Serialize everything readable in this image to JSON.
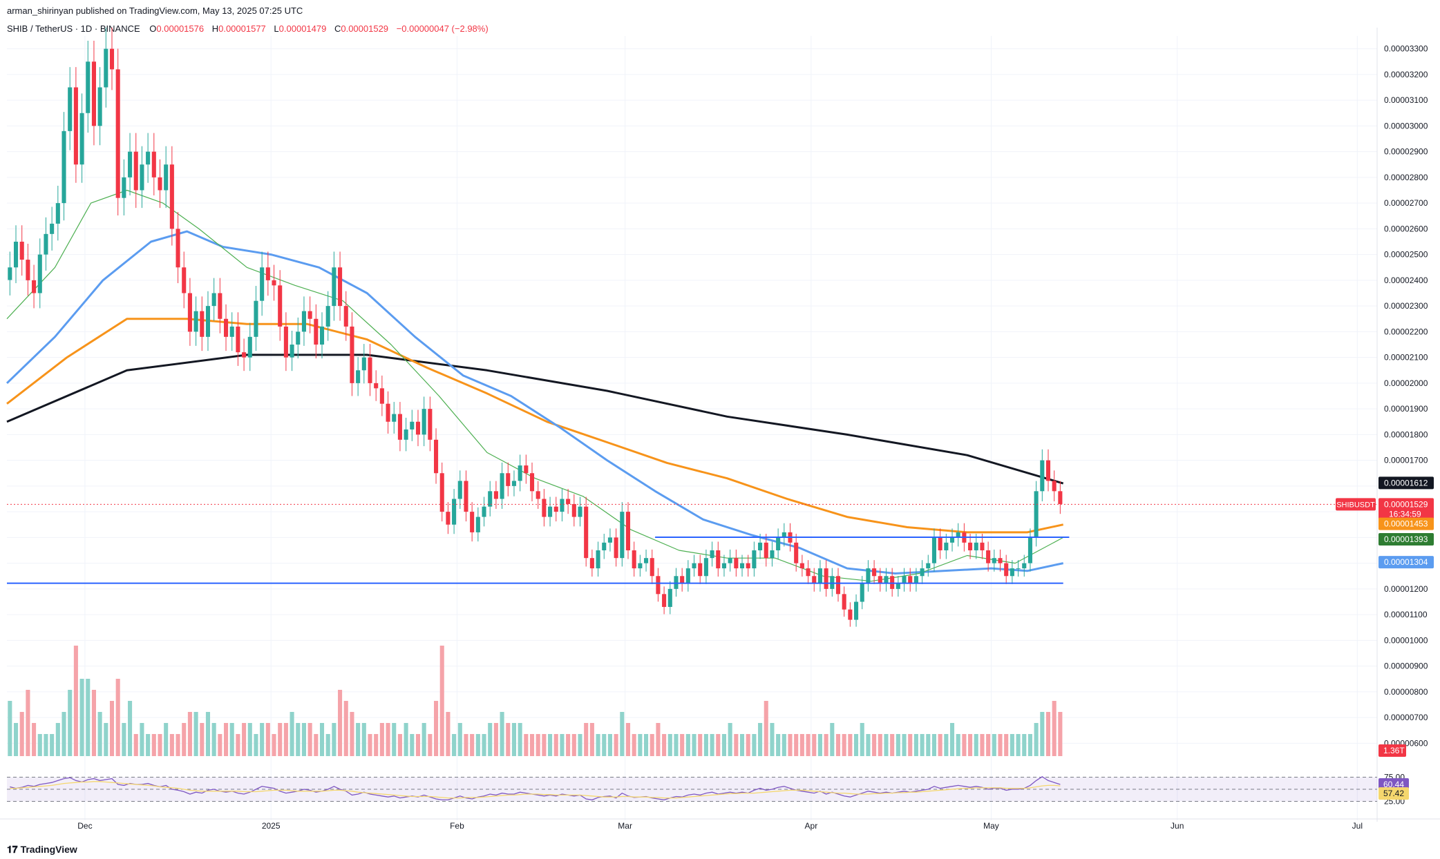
{
  "header": {
    "publisher": "arman_shirinyan published on TradingView.com, May 13, 2025 07:25 UTC",
    "symbol": "SHIB / TetherUS · 1D · BINANCE",
    "o_label": "O",
    "o_value": "0.00001576",
    "h_label": "H",
    "h_value": "0.00001577",
    "l_label": "L",
    "l_value": "0.00001479",
    "c_label": "C",
    "c_value": "0.00001529",
    "change": "−0.00000047 (−2.98%)"
  },
  "footer": {
    "logo_text": "TradingView"
  },
  "colors": {
    "up": "#26a69a",
    "down": "#f23645",
    "up_vol": "#8fd3cb",
    "down_vol": "#f5a3a9",
    "ma_black": "#131722",
    "ma_orange": "#f7931a",
    "ma_blue": "#5b9cf0",
    "ma_green": "#4caf50",
    "hline": "#2962ff",
    "rsi": "#7e57c2",
    "rsi_ma": "#f5d76e"
  },
  "chart_data": {
    "type": "candlestick",
    "symbol": "SHIBUSDT",
    "price_axis": {
      "min": 5.5e-06,
      "max": 3.35e-05,
      "ticks": [
        "0.00003300",
        "0.00003200",
        "0.00003100",
        "0.00003000",
        "0.00002900",
        "0.00002800",
        "0.00002700",
        "0.00002600",
        "0.00002500",
        "0.00002400",
        "0.00002300",
        "0.00002200",
        "0.00002100",
        "0.00002000",
        "0.00001900",
        "0.00001800",
        "0.00001700",
        "0.00001600",
        "0.00001500",
        "0.00001400",
        "0.00001300",
        "0.00001200",
        "0.00001100",
        "0.00001000",
        "0.00000900",
        "0.00000800",
        "0.00000700",
        "0.00000600"
      ]
    },
    "time_axis": {
      "labels": [
        "Dec",
        "2025",
        "Feb",
        "Mar",
        "Apr",
        "May",
        "Jun",
        "Jul"
      ],
      "label_days": [
        13,
        44,
        75,
        103,
        134,
        164,
        195,
        225
      ],
      "start": "2024-11-18",
      "end": "2025-07-15",
      "last_candle_day": 176
    },
    "candles_close": [
      2.45e-05,
      2.55e-05,
      2.48e-05,
      2.4e-05,
      2.35e-05,
      2.5e-05,
      2.58e-05,
      2.62e-05,
      2.7e-05,
      2.98e-05,
      3.15e-05,
      2.85e-05,
      3.05e-05,
      3.25e-05,
      3e-05,
      3.15e-05,
      3.3e-05,
      3.22e-05,
      2.72e-05,
      2.8e-05,
      2.9e-05,
      2.75e-05,
      2.85e-05,
      2.9e-05,
      2.8e-05,
      2.75e-05,
      2.85e-05,
      2.6e-05,
      2.45e-05,
      2.35e-05,
      2.2e-05,
      2.28e-05,
      2.18e-05,
      2.3e-05,
      2.35e-05,
      2.25e-05,
      2.18e-05,
      2.22e-05,
      2.12e-05,
      2.1e-05,
      2.18e-05,
      2.32e-05,
      2.45e-05,
      2.4e-05,
      2.38e-05,
      2.22e-05,
      2.1e-05,
      2.15e-05,
      2.2e-05,
      2.28e-05,
      2.25e-05,
      2.15e-05,
      2.22e-05,
      2.3e-05,
      2.45e-05,
      2.3e-05,
      2.22e-05,
      2e-05,
      2.05e-05,
      2.1e-05,
      2e-05,
      1.98e-05,
      1.92e-05,
      1.85e-05,
      1.88e-05,
      1.78e-05,
      1.82e-05,
      1.85e-05,
      1.8e-05,
      1.9e-05,
      1.78e-05,
      1.65e-05,
      1.5e-05,
      1.45e-05,
      1.55e-05,
      1.62e-05,
      1.5e-05,
      1.42e-05,
      1.48e-05,
      1.52e-05,
      1.58e-05,
      1.55e-05,
      1.65e-05,
      1.6e-05,
      1.62e-05,
      1.68e-05,
      1.65e-05,
      1.58e-05,
      1.55e-05,
      1.48e-05,
      1.52e-05,
      1.5e-05,
      1.55e-05,
      1.53e-05,
      1.48e-05,
      1.52e-05,
      1.32e-05,
      1.28e-05,
      1.35e-05,
      1.38e-05,
      1.4e-05,
      1.32e-05,
      1.5e-05,
      1.35e-05,
      1.28e-05,
      1.3e-05,
      1.32e-05,
      1.25e-05,
      1.18e-05,
      1.13e-05,
      1.2e-05,
      1.25e-05,
      1.22e-05,
      1.28e-05,
      1.3e-05,
      1.25e-05,
      1.32e-05,
      1.35e-05,
      1.28e-05,
      1.3e-05,
      1.32e-05,
      1.28e-05,
      1.3e-05,
      1.28e-05,
      1.35e-05,
      1.38e-05,
      1.32e-05,
      1.35e-05,
      1.4e-05,
      1.42e-05,
      1.38e-05,
      1.3e-05,
      1.28e-05,
      1.25e-05,
      1.22e-05,
      1.28e-05,
      1.2e-05,
      1.25e-05,
      1.18e-05,
      1.12e-05,
      1.08e-05,
      1.15e-05,
      1.22e-05,
      1.28e-05,
      1.25e-05,
      1.22e-05,
      1.25e-05,
      1.2e-05,
      1.22e-05,
      1.25e-05,
      1.22e-05,
      1.25e-05,
      1.28e-05,
      1.3e-05,
      1.4e-05,
      1.35e-05,
      1.38e-05,
      1.4e-05,
      1.42e-05,
      1.38e-05,
      1.35e-05,
      1.38e-05,
      1.35e-05,
      1.3e-05,
      1.32e-05,
      1.3e-05,
      1.25e-05,
      1.28e-05,
      1.28e-05,
      1.3e-05,
      1.4e-05,
      1.58e-05,
      1.7e-05,
      1.62e-05,
      1.58e-05,
      1.53e-05
    ],
    "moving_averages": [
      {
        "color": "ma_black",
        "points": [
          [
            0,
            1.85e-05
          ],
          [
            20,
            2.05e-05
          ],
          [
            40,
            2.11e-05
          ],
          [
            60,
            2.11e-05
          ],
          [
            80,
            2.05e-05
          ],
          [
            100,
            1.97e-05
          ],
          [
            120,
            1.87e-05
          ],
          [
            140,
            1.8e-05
          ],
          [
            160,
            1.72e-05
          ],
          [
            176,
            1.61e-05
          ]
        ]
      },
      {
        "color": "ma_orange",
        "points": [
          [
            0,
            1.92e-05
          ],
          [
            10,
            2.1e-05
          ],
          [
            20,
            2.25e-05
          ],
          [
            30,
            2.25e-05
          ],
          [
            40,
            2.23e-05
          ],
          [
            50,
            2.23e-05
          ],
          [
            60,
            2.17e-05
          ],
          [
            70,
            2.06e-05
          ],
          [
            80,
            1.96e-05
          ],
          [
            90,
            1.85e-05
          ],
          [
            100,
            1.77e-05
          ],
          [
            110,
            1.69e-05
          ],
          [
            120,
            1.63e-05
          ],
          [
            130,
            1.55e-05
          ],
          [
            140,
            1.48e-05
          ],
          [
            150,
            1.44e-05
          ],
          [
            160,
            1.42e-05
          ],
          [
            170,
            1.42e-05
          ],
          [
            176,
            1.45e-05
          ]
        ]
      },
      {
        "color": "ma_blue",
        "points": [
          [
            0,
            2e-05
          ],
          [
            8,
            2.18e-05
          ],
          [
            16,
            2.4e-05
          ],
          [
            24,
            2.55e-05
          ],
          [
            30,
            2.59e-05
          ],
          [
            36,
            2.53e-05
          ],
          [
            44,
            2.5e-05
          ],
          [
            52,
            2.45e-05
          ],
          [
            60,
            2.35e-05
          ],
          [
            68,
            2.18e-05
          ],
          [
            76,
            2.03e-05
          ],
          [
            84,
            1.95e-05
          ],
          [
            92,
            1.83e-05
          ],
          [
            100,
            1.7e-05
          ],
          [
            108,
            1.58e-05
          ],
          [
            116,
            1.47e-05
          ],
          [
            124,
            1.41e-05
          ],
          [
            132,
            1.36e-05
          ],
          [
            140,
            1.28e-05
          ],
          [
            148,
            1.26e-05
          ],
          [
            156,
            1.27e-05
          ],
          [
            164,
            1.28e-05
          ],
          [
            170,
            1.27e-05
          ],
          [
            176,
            1.3e-05
          ]
        ]
      },
      {
        "color": "ma_green",
        "points": [
          [
            0,
            2.25e-05
          ],
          [
            8,
            2.45e-05
          ],
          [
            14,
            2.7e-05
          ],
          [
            20,
            2.75e-05
          ],
          [
            26,
            2.7e-05
          ],
          [
            32,
            2.6e-05
          ],
          [
            40,
            2.45e-05
          ],
          [
            48,
            2.38e-05
          ],
          [
            56,
            2.32e-05
          ],
          [
            64,
            2.15e-05
          ],
          [
            72,
            1.95e-05
          ],
          [
            80,
            1.73e-05
          ],
          [
            88,
            1.63e-05
          ],
          [
            96,
            1.56e-05
          ],
          [
            104,
            1.43e-05
          ],
          [
            112,
            1.35e-05
          ],
          [
            120,
            1.32e-05
          ],
          [
            128,
            1.32e-05
          ],
          [
            136,
            1.25e-05
          ],
          [
            144,
            1.23e-05
          ],
          [
            152,
            1.26e-05
          ],
          [
            160,
            1.33e-05
          ],
          [
            168,
            1.3e-05
          ],
          [
            172,
            1.35e-05
          ],
          [
            176,
            1.4e-05
          ]
        ]
      }
    ],
    "support_lines": [
      {
        "price": 1.401e-05,
        "from_day": 108,
        "to_day": 177
      },
      {
        "price": 1.222e-05,
        "from_day": 0,
        "to_day": 176
      }
    ],
    "price_labels": [
      {
        "text": "0.00001612",
        "price": 1.612e-05,
        "bg": "#131722"
      },
      {
        "text": "SHIBUSDT",
        "price": 1.529e-05,
        "bg": "#f23645",
        "side": "left"
      },
      {
        "text": "0.00001529",
        "price": 1.529e-05,
        "bg": "#f23645",
        "sub": "16:34:59"
      },
      {
        "text": "0.00001453",
        "price": 1.453e-05,
        "bg": "#f7931a"
      },
      {
        "text": "0.00001393",
        "price": 1.393e-05,
        "bg": "#2e7d32"
      },
      {
        "text": "0.00001304",
        "price": 1.304e-05,
        "bg": "#5b9cf0"
      }
    ],
    "volume": {
      "label": "1.36T",
      "values": [
        5,
        3,
        4,
        6,
        3,
        2,
        2,
        2,
        3,
        4,
        6,
        10,
        7,
        7,
        6,
        4,
        3,
        5,
        7,
        3,
        5,
        2,
        3,
        2,
        2,
        2,
        3,
        2,
        2,
        3,
        4,
        4,
        3,
        4,
        3,
        2,
        3,
        3,
        2,
        3,
        3,
        2,
        3,
        3,
        2,
        3,
        3,
        4,
        3,
        3,
        3,
        2,
        3,
        2,
        3,
        6,
        5,
        4,
        3,
        3,
        2,
        2,
        3,
        3,
        3,
        2,
        3,
        2,
        2,
        3,
        2,
        5,
        10,
        4,
        2,
        3,
        2,
        2,
        2,
        2,
        3,
        3,
        4,
        3,
        3,
        3,
        2,
        2,
        2,
        2,
        2,
        2,
        2,
        2,
        2,
        2,
        3,
        3,
        2,
        2,
        2,
        2,
        4,
        3,
        2,
        2,
        2,
        2,
        3,
        2,
        2,
        2,
        2,
        2,
        2,
        2,
        2,
        2,
        2,
        2,
        3,
        2,
        2,
        2,
        2,
        3,
        5,
        3,
        2,
        2,
        2,
        2,
        2,
        2,
        2,
        2,
        2,
        3,
        2,
        2,
        2,
        2,
        3,
        2,
        2,
        2,
        2,
        2,
        2,
        2,
        2,
        2,
        2,
        2,
        2,
        2,
        2,
        3,
        2,
        2,
        2,
        2,
        2,
        2,
        2,
        2,
        2,
        2,
        2,
        2,
        2,
        3,
        4,
        4,
        5,
        4,
        2
      ]
    },
    "rsi": {
      "top_label": "75.00",
      "bottom_label": "25.00",
      "value_label": "60.44",
      "ma_label": "57.42",
      "values": [
        55,
        52,
        54,
        58,
        56,
        60,
        62,
        64,
        68,
        72,
        74,
        68,
        65,
        70,
        72,
        68,
        70,
        72,
        60,
        58,
        62,
        60,
        60,
        62,
        58,
        55,
        58,
        50,
        48,
        45,
        40,
        44,
        42,
        48,
        50,
        46,
        44,
        46,
        42,
        40,
        44,
        50,
        56,
        54,
        52,
        46,
        42,
        44,
        46,
        50,
        48,
        44,
        46,
        50,
        56,
        50,
        46,
        38,
        40,
        44,
        40,
        38,
        36,
        34,
        36,
        32,
        34,
        36,
        34,
        38,
        34,
        30,
        28,
        28,
        32,
        36,
        32,
        30,
        34,
        36,
        40,
        38,
        42,
        40,
        40,
        44,
        42,
        40,
        38,
        36,
        38,
        36,
        40,
        38,
        36,
        38,
        30,
        28,
        33,
        35,
        36,
        32,
        42,
        36,
        33,
        34,
        35,
        32,
        30,
        28,
        32,
        35,
        34,
        38,
        40,
        38,
        42,
        44,
        40,
        42,
        44,
        42,
        44,
        42,
        48,
        52,
        48,
        50,
        54,
        56,
        52,
        48,
        46,
        44,
        42,
        46,
        40,
        44,
        40,
        36,
        34,
        38,
        42,
        46,
        44,
        42,
        44,
        42,
        44,
        46,
        44,
        46,
        48,
        50,
        56,
        52,
        54,
        56,
        58,
        56,
        54,
        56,
        54,
        50,
        52,
        52,
        48,
        50,
        50,
        52,
        58,
        68,
        76,
        68,
        64,
        60
      ],
      "ma_values": [
        52,
        52,
        53,
        54,
        55,
        56,
        57,
        58,
        60,
        62,
        63,
        64,
        65,
        65,
        66,
        66,
        65,
        64,
        63,
        62,
        61,
        60,
        59,
        58,
        57,
        55,
        54,
        53,
        52,
        50,
        48,
        47,
        46,
        46,
        46,
        46,
        46,
        46,
        46,
        45,
        45,
        45,
        46,
        47,
        48,
        48,
        48,
        47,
        46,
        46,
        46,
        46,
        46,
        47,
        48,
        48,
        47,
        46,
        44,
        43,
        42,
        41,
        40,
        39,
        38,
        37,
        36,
        35,
        35,
        35,
        35,
        34,
        33,
        32,
        32,
        32,
        33,
        33,
        33,
        34,
        35,
        36,
        37,
        38,
        38,
        39,
        40,
        40,
        40,
        39,
        39,
        38,
        38,
        38,
        38,
        38,
        37,
        36,
        35,
        34,
        34,
        34,
        35,
        35,
        34,
        34,
        34,
        33,
        33,
        32,
        32,
        32,
        33,
        34,
        35,
        36,
        37,
        38,
        39,
        40,
        41,
        41,
        42,
        42,
        42,
        43,
        44,
        45,
        46,
        47,
        48,
        48,
        48,
        47,
        46,
        45,
        44,
        43,
        42,
        42,
        41,
        40,
        40,
        40,
        41,
        41,
        42,
        42,
        43,
        43,
        44,
        44,
        45,
        46,
        47,
        48,
        49,
        50,
        51,
        52,
        52,
        53,
        53,
        53,
        53,
        53,
        52,
        52,
        52,
        52,
        53,
        55,
        57,
        58,
        58,
        57
      ]
    }
  }
}
